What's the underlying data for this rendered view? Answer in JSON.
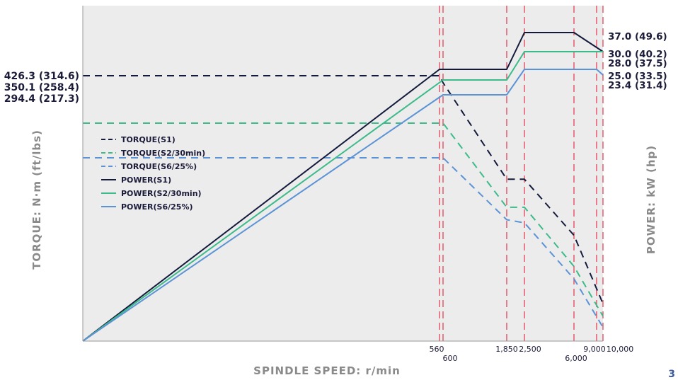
{
  "colors": {
    "s1": "#141a3c",
    "s2": "#3cbb8a",
    "s6": "#5b93d6",
    "ref": "#e0364a",
    "plot_bg": "#ececec"
  },
  "page_number": "3",
  "chart_data": {
    "type": "line",
    "xlabel": "SPINDLE SPEED: r/min",
    "ylabel_left": "TORQUE: N·m (ft/lbs)",
    "ylabel_right": "POWER: kW (hp)",
    "x_ticks": [
      "560",
      "600",
      "1,850",
      "2,500",
      "6,000",
      "9,000",
      "10,000"
    ],
    "ref_lines_x": [
      560,
      600,
      1850,
      2500,
      6000,
      9000,
      10000
    ],
    "torque_labels": [
      "426.3 (314.6)",
      "350.1 (258.4)",
      "294.4 (217.3)"
    ],
    "power_labels": [
      "37.0 (49.6)",
      "30.0 (40.2)",
      "28.0 (37.5)",
      "25.0 (33.5)",
      "23.4 (31.4)"
    ],
    "legend": [
      "TORQUE(S1)",
      "TORQUE(S2/30min)",
      "TORQUE(S6/25%)",
      "POWER(S1)",
      "POWER(S2/30min)",
      "POWER(S6/25%)"
    ],
    "series": [
      {
        "name": "TORQUE(S1)",
        "kind": "torque",
        "style": "dashed",
        "color_key": "s1",
        "points": [
          [
            0,
            426.3
          ],
          [
            560,
            426.3
          ],
          [
            600,
            415
          ],
          [
            1850,
            260
          ],
          [
            2500,
            260
          ],
          [
            6000,
            170
          ],
          [
            10000,
            60
          ]
        ]
      },
      {
        "name": "TORQUE(S2/30min)",
        "kind": "torque",
        "style": "dashed",
        "color_key": "s2",
        "points": [
          [
            0,
            350.1
          ],
          [
            600,
            350.1
          ],
          [
            1850,
            215
          ],
          [
            2500,
            215
          ],
          [
            6000,
            120
          ],
          [
            10000,
            40
          ]
        ]
      },
      {
        "name": "TORQUE(S6/25%)",
        "kind": "torque",
        "style": "dashed",
        "color_key": "s6",
        "points": [
          [
            0,
            294.4
          ],
          [
            600,
            294.4
          ],
          [
            1850,
            195
          ],
          [
            2500,
            190
          ],
          [
            6000,
            100
          ],
          [
            10000,
            22
          ]
        ]
      },
      {
        "name": "POWER(S1)",
        "kind": "power",
        "style": "solid",
        "color_key": "s1",
        "points": [
          [
            0,
            0
          ],
          [
            560,
            25.0
          ],
          [
            1850,
            25.0
          ],
          [
            2500,
            37.0
          ],
          [
            6000,
            37.0
          ],
          [
            10000,
            30.0
          ]
        ]
      },
      {
        "name": "POWER(S2/30min)",
        "kind": "power",
        "style": "solid",
        "color_key": "s2",
        "points": [
          [
            0,
            0
          ],
          [
            600,
            22.0
          ],
          [
            1850,
            22.0
          ],
          [
            2500,
            30.0
          ],
          [
            10000,
            30.0
          ]
        ]
      },
      {
        "name": "POWER(S6/25%)",
        "kind": "power",
        "style": "solid",
        "color_key": "s6",
        "points": [
          [
            0,
            0
          ],
          [
            600,
            20.0
          ],
          [
            1850,
            20.0
          ],
          [
            2500,
            25.0
          ],
          [
            9000,
            25.0
          ],
          [
            10000,
            23.4
          ]
        ]
      }
    ]
  }
}
